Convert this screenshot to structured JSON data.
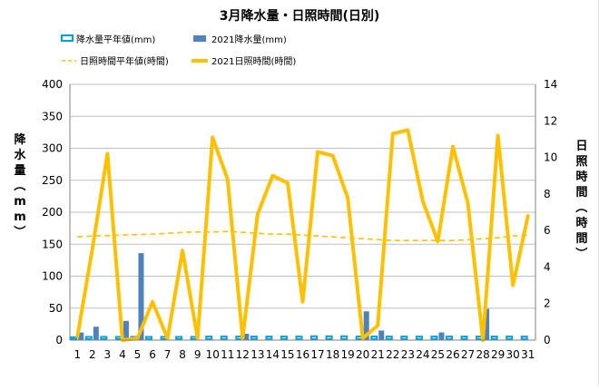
{
  "chart_data": {
    "type": "bar+line",
    "title": "3月降水量・日照時間(日別)",
    "ylabel_left": "降水量（mm）",
    "ylabel_right": "日照時間（時間）",
    "ylim_left": [
      0,
      400
    ],
    "ylim_right": [
      0,
      14
    ],
    "yticks_left": [
      "0",
      "50",
      "100",
      "150",
      "200",
      "250",
      "300",
      "350",
      "400"
    ],
    "yticks_right": [
      "0",
      "2",
      "4",
      "6",
      "8",
      "10",
      "12",
      "14"
    ],
    "categories": [
      "1",
      "2",
      "3",
      "4",
      "5",
      "6",
      "7",
      "8",
      "9",
      "10",
      "11",
      "12",
      "13",
      "14",
      "15",
      "16",
      "17",
      "18",
      "19",
      "20",
      "21",
      "22",
      "23",
      "24",
      "25",
      "26",
      "27",
      "28",
      "29",
      "30",
      "31"
    ],
    "grid": "horizontal",
    "legend_position": "top",
    "series": [
      {
        "name": "降水量平年値(mm)",
        "kind": "bar",
        "axis": "left",
        "color": "#00a0e0",
        "values": [
          4.5,
          5,
          5,
          5,
          5,
          5,
          5,
          5,
          5,
          5.5,
          5.5,
          5.5,
          5.5,
          5.5,
          5.5,
          5.5,
          6,
          6,
          6,
          5.5,
          5.5,
          5.5,
          5.5,
          5.5,
          5.5,
          5.5,
          5.5,
          5.5,
          5.5,
          5.5,
          5.5
        ]
      },
      {
        "name": "2021降水量(mm)",
        "kind": "bar",
        "axis": "left",
        "color": "#4f81bd",
        "values": [
          12,
          21,
          0,
          30,
          136,
          0,
          0,
          0,
          0,
          0,
          0,
          10,
          0,
          0,
          0,
          0,
          0,
          0,
          0,
          45,
          15,
          0,
          0,
          0,
          12,
          0,
          0,
          49,
          0,
          0,
          0
        ]
      },
      {
        "name": "日照時間平年値(時間)",
        "kind": "line",
        "style": "dashed",
        "axis": "right",
        "color": "#ffc000",
        "values": [
          5.65,
          5.7,
          5.72,
          5.75,
          5.78,
          5.8,
          5.85,
          5.9,
          5.92,
          5.92,
          5.95,
          5.9,
          5.85,
          5.8,
          5.8,
          5.75,
          5.7,
          5.65,
          5.6,
          5.55,
          5.5,
          5.45,
          5.45,
          5.45,
          5.45,
          5.45,
          5.5,
          5.55,
          5.6,
          5.7,
          5.75
        ]
      },
      {
        "name": "2021日照時間(時間)",
        "kind": "line",
        "style": "solid",
        "axis": "right",
        "color": "#ffc000",
        "values": [
          0.2,
          5.0,
          10.2,
          0,
          0.1,
          2.1,
          0.1,
          4.9,
          0.1,
          11.1,
          8.8,
          0.1,
          6.9,
          9.0,
          8.6,
          2.1,
          10.3,
          10.1,
          7.8,
          0.1,
          0.8,
          11.3,
          11.5,
          7.6,
          5.4,
          10.6,
          7.5,
          0,
          11.2,
          3.0,
          6.8
        ]
      }
    ]
  }
}
